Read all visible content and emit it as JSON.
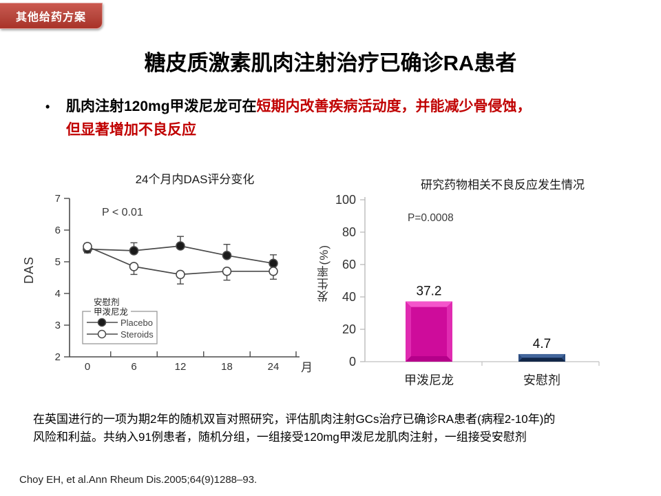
{
  "badge": {
    "label": "其他给药方案",
    "color_top": "#CB5950",
    "color_bottom": "#A93228"
  },
  "title": "糖皮质激素肌肉注射治疗已确诊RA患者",
  "bullet": {
    "marker": "•",
    "black_text": "肌肉注射120mg甲泼尼龙可在",
    "red_line1": "短期内改善疾病活动度，并能减少骨侵蚀，",
    "red_line2": "但显著增加不良反应",
    "red_color": "#C00000"
  },
  "chart_data": [
    {
      "type": "line",
      "title": "24个月内DAS评分变化",
      "annotation": "P < 0.01",
      "ylabel": "DAS",
      "xlabel": "月",
      "x": [
        0,
        6,
        12,
        18,
        24
      ],
      "xlim": [
        0,
        24
      ],
      "ylim": [
        2,
        7
      ],
      "yticks": [
        2,
        3,
        4,
        5,
        6,
        7
      ],
      "xtick_labels": [
        0,
        6,
        12,
        18,
        24
      ],
      "minor_xticks": [
        3,
        9,
        15,
        21,
        27
      ],
      "grid": false,
      "legend_position": "bottom-left-box",
      "series": [
        {
          "name": "Placebo",
          "name_zh": "安慰剂",
          "marker": "filled-circle",
          "values": [
            5.4,
            5.35,
            5.5,
            5.2,
            4.95
          ],
          "err_up": [
            0.12,
            0.25,
            0.3,
            0.35,
            0.27
          ],
          "err_down": [
            0.12,
            0,
            0,
            0,
            0
          ]
        },
        {
          "name": "Steroids",
          "name_zh": "甲泼尼龙",
          "marker": "open-circle",
          "values": [
            5.48,
            4.85,
            4.6,
            4.7,
            4.7
          ],
          "err_up": [
            0.1,
            0,
            0,
            0,
            0
          ],
          "err_down": [
            0.12,
            0.25,
            0.3,
            0.28,
            0.25
          ]
        }
      ],
      "line_color": "#4a4a4a"
    },
    {
      "type": "bar",
      "title": "研究药物相关不良反应发生情况",
      "annotation": "P=0.0008",
      "ylabel": "发生率(%)",
      "categories": [
        "甲泼尼龙",
        "安慰剂"
      ],
      "values": [
        37.2,
        4.7
      ],
      "value_labels": [
        "37.2",
        "4.7"
      ],
      "ylim": [
        0,
        100
      ],
      "yticks": [
        0,
        20,
        40,
        60,
        80,
        100
      ],
      "grid": false,
      "bar_colors": [
        {
          "base": "#CE0C9B",
          "light": "#F455CB",
          "mid": "#E02BB1",
          "dark": "#B5008A"
        },
        {
          "base": "#1B3764",
          "light": "#44679C",
          "mid": "#2C4C7F",
          "dark": "#122748"
        }
      ]
    }
  ],
  "summary": {
    "line1": "在英国进行的一项为期2年的随机双盲对照研究，评估肌肉注射GCs治疗已确诊RA患者(病程2-10年)的",
    "line2": "风险和利益。共纳入91例患者，随机分组，一组接受120mg甲泼尼龙肌肉注射，一组接受安慰剂"
  },
  "citation": "Choy EH, et al.Ann Rheum Dis.2005;64(9)1288–93."
}
